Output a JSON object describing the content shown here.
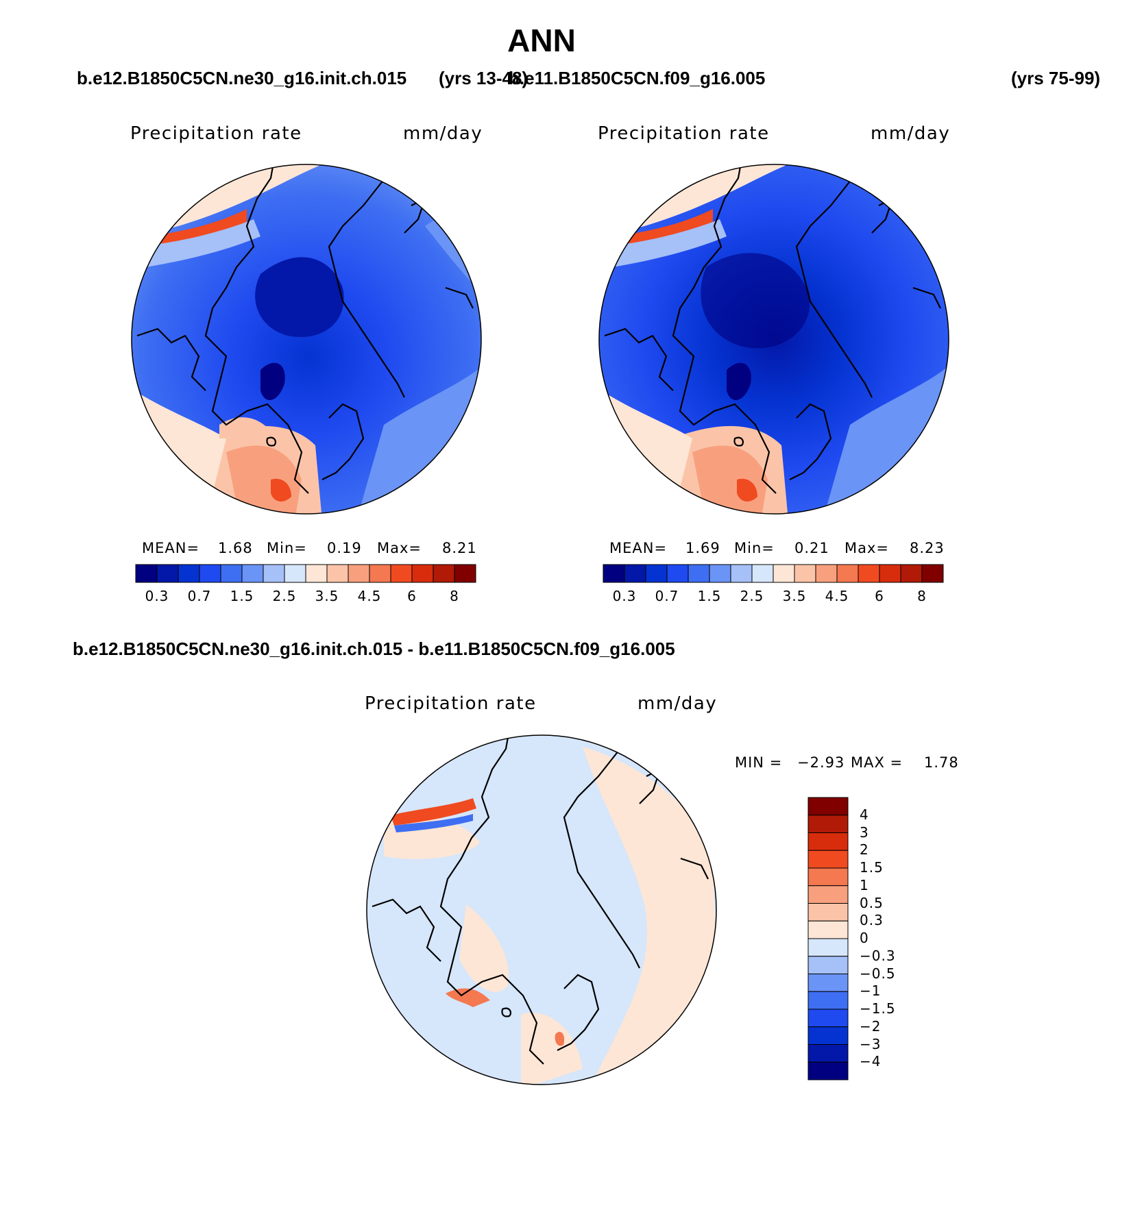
{
  "figure": {
    "title": "ANN",
    "case_left": "b.e12.B1850C5CN.ne30_g16.init.ch.015",
    "case_left_years": "(yrs 13-48)",
    "case_right": "b.e11.B1850C5CN.f09_g16.005",
    "case_right_years": "(yrs 75-99)",
    "diff_title": "b.e12.B1850C5CN.ne30_g16.init.ch.015 - b.e11.B1850C5CN.f09_g16.005"
  },
  "colors": {
    "abs_palette": [
      "#000080",
      "#0318a8",
      "#0533d1",
      "#1f4af0",
      "#3e6ef2",
      "#6a94f5",
      "#a6c0f8",
      "#d6e6fb",
      "#fde6d6",
      "#fbc4a8",
      "#f8a07e",
      "#f47850",
      "#f04a20",
      "#d82d0c",
      "#b01a06",
      "#800000"
    ],
    "diff_palette": [
      "#000080",
      "#0318a8",
      "#0533d1",
      "#1f4af0",
      "#3e6ef2",
      "#6a94f5",
      "#a6c0f8",
      "#d6e6fb",
      "#fde6d6",
      "#fbc4a8",
      "#f8a07e",
      "#f47850",
      "#f04a20",
      "#d82d0c",
      "#b01a06",
      "#800000"
    ]
  },
  "chart_data": [
    {
      "type": "heatmap",
      "projection": "north polar stereographic",
      "title": "Precipitation rate",
      "units": "mm/day",
      "mean_label": "MEAN=",
      "mean": "1.68",
      "min_label": "Min=",
      "min": "0.19",
      "max_label": "Max=",
      "max": "8.21",
      "colorbar_ticks": [
        "0.3",
        "0.7",
        "1.5",
        "2.5",
        "3.5",
        "4.5",
        "6",
        "8"
      ]
    },
    {
      "type": "heatmap",
      "projection": "north polar stereographic",
      "title": "Precipitation rate",
      "units": "mm/day",
      "mean_label": "MEAN=",
      "mean": "1.69",
      "min_label": "Min=",
      "min": "0.21",
      "max_label": "Max=",
      "max": "8.23",
      "colorbar_ticks": [
        "0.3",
        "0.7",
        "1.5",
        "2.5",
        "3.5",
        "4.5",
        "6",
        "8"
      ]
    },
    {
      "type": "heatmap",
      "projection": "north polar stereographic",
      "title": "Precipitation rate",
      "units": "mm/day",
      "min_label": "MIN =",
      "min": "−2.93",
      "max_label": "MAX =",
      "max": "1.78",
      "colorbar_ticks": [
        "4",
        "3",
        "2",
        "1.5",
        "1",
        "0.5",
        "0.3",
        "0",
        "−0.3",
        "−0.5",
        "−1",
        "−1.5",
        "−2",
        "−3",
        "−4"
      ]
    }
  ]
}
